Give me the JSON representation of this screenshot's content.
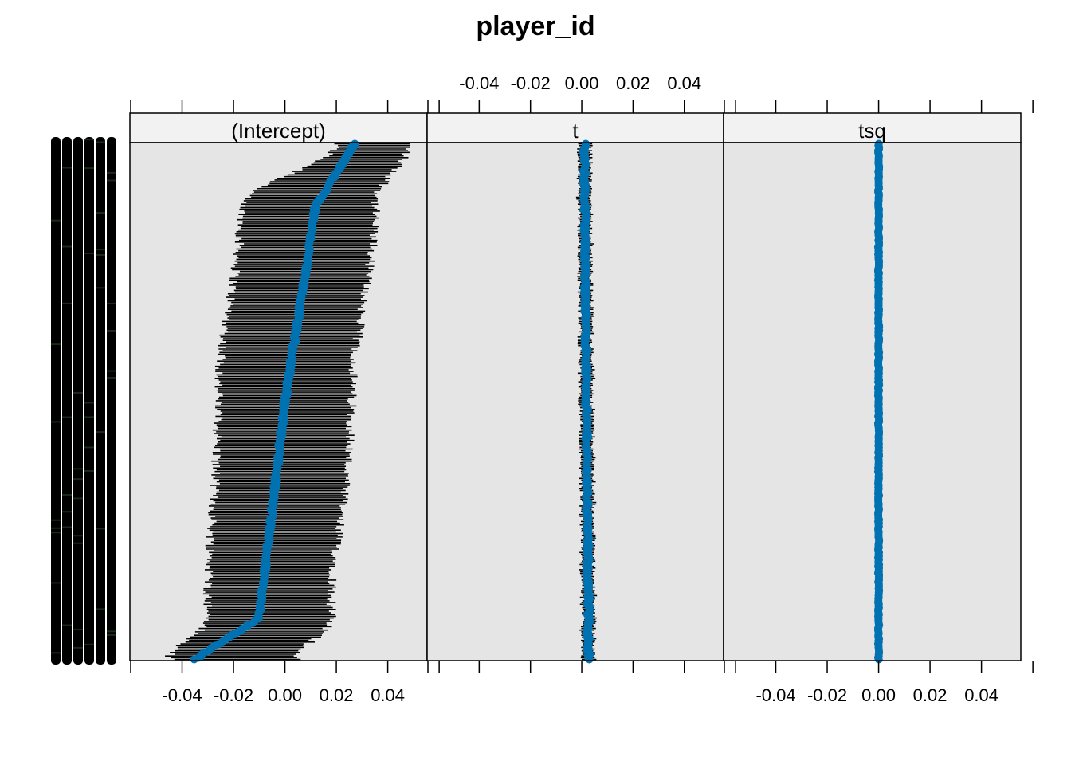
{
  "chart_data": {
    "type": "scatter",
    "title": "player_id",
    "panels": [
      {
        "name": "(Intercept)",
        "spread": 0.045,
        "curve": "sigmoid"
      },
      {
        "name": "t",
        "spread": 0.0018,
        "curve": "flat"
      },
      {
        "name": "tsq",
        "spread": 0.0003,
        "curve": "flat"
      }
    ],
    "x_ticks": [
      "-0.04",
      "-0.02",
      "0.00",
      "0.02",
      "0.04"
    ],
    "xlim": [
      -0.06,
      0.055
    ],
    "n_levels": 300,
    "intercept_ci": {
      "top": {
        "estimate": 0.027,
        "lower": 0.02,
        "upper": 0.048
      },
      "upper_knee": {
        "estimate": 0.012,
        "lower": -0.017,
        "upper": 0.035
      },
      "middle": {
        "estimate": 0.0,
        "lower": -0.026,
        "upper": 0.026
      },
      "lower_knee": {
        "estimate": -0.01,
        "lower": -0.03,
        "upper": 0.018
      },
      "bottom": {
        "estimate": -0.035,
        "lower": -0.045,
        "upper": 0.005
      }
    },
    "t_estimate_range": [
      0.0,
      0.003
    ],
    "tsq_estimate_range": [
      -0.0005,
      0.0005
    ],
    "point_color": "#0072B2",
    "bar_color": "#000000",
    "panel_bg": "#E5E5E5",
    "strip_bg": "#F2F2F2"
  }
}
